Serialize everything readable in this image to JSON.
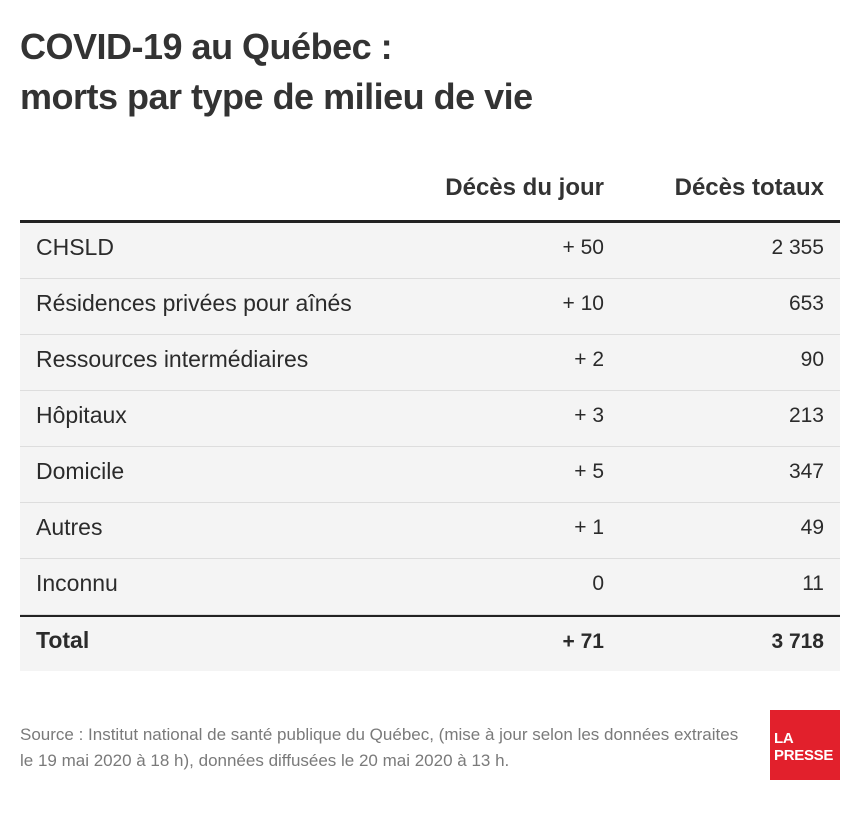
{
  "title": {
    "line1": "COVID-19 au Québec :",
    "line2": "morts par type de milieu de vie"
  },
  "chart_data": {
    "type": "table",
    "columns": [
      "Décès du jour",
      "Décès totaux"
    ],
    "rows": [
      {
        "label": "CHSLD",
        "day": "+ 50",
        "total": "2 355"
      },
      {
        "label": "Résidences privées pour aînés",
        "day": "+ 10",
        "total": "653"
      },
      {
        "label": "Ressources intermédiaires",
        "day": "+ 2",
        "total": "90"
      },
      {
        "label": "Hôpitaux",
        "day": "+ 3",
        "total": "213"
      },
      {
        "label": "Domicile",
        "day": "+ 5",
        "total": "347"
      },
      {
        "label": "Autres",
        "day": "+ 1",
        "total": "49"
      },
      {
        "label": "Inconnu",
        "day": "0",
        "total": "11"
      }
    ],
    "total_row": {
      "label": "Total",
      "day": "+ 71",
      "total": "3 718"
    }
  },
  "source": "Source : Institut national de santé publique du Québec, (mise à jour selon les données extraites le 19 mai 2020 à 18 h), données diffusées le 20 mai 2020 à 13 h.",
  "logo": {
    "line1": "LA",
    "line2": "PRESSE",
    "color": "#e2202c"
  }
}
